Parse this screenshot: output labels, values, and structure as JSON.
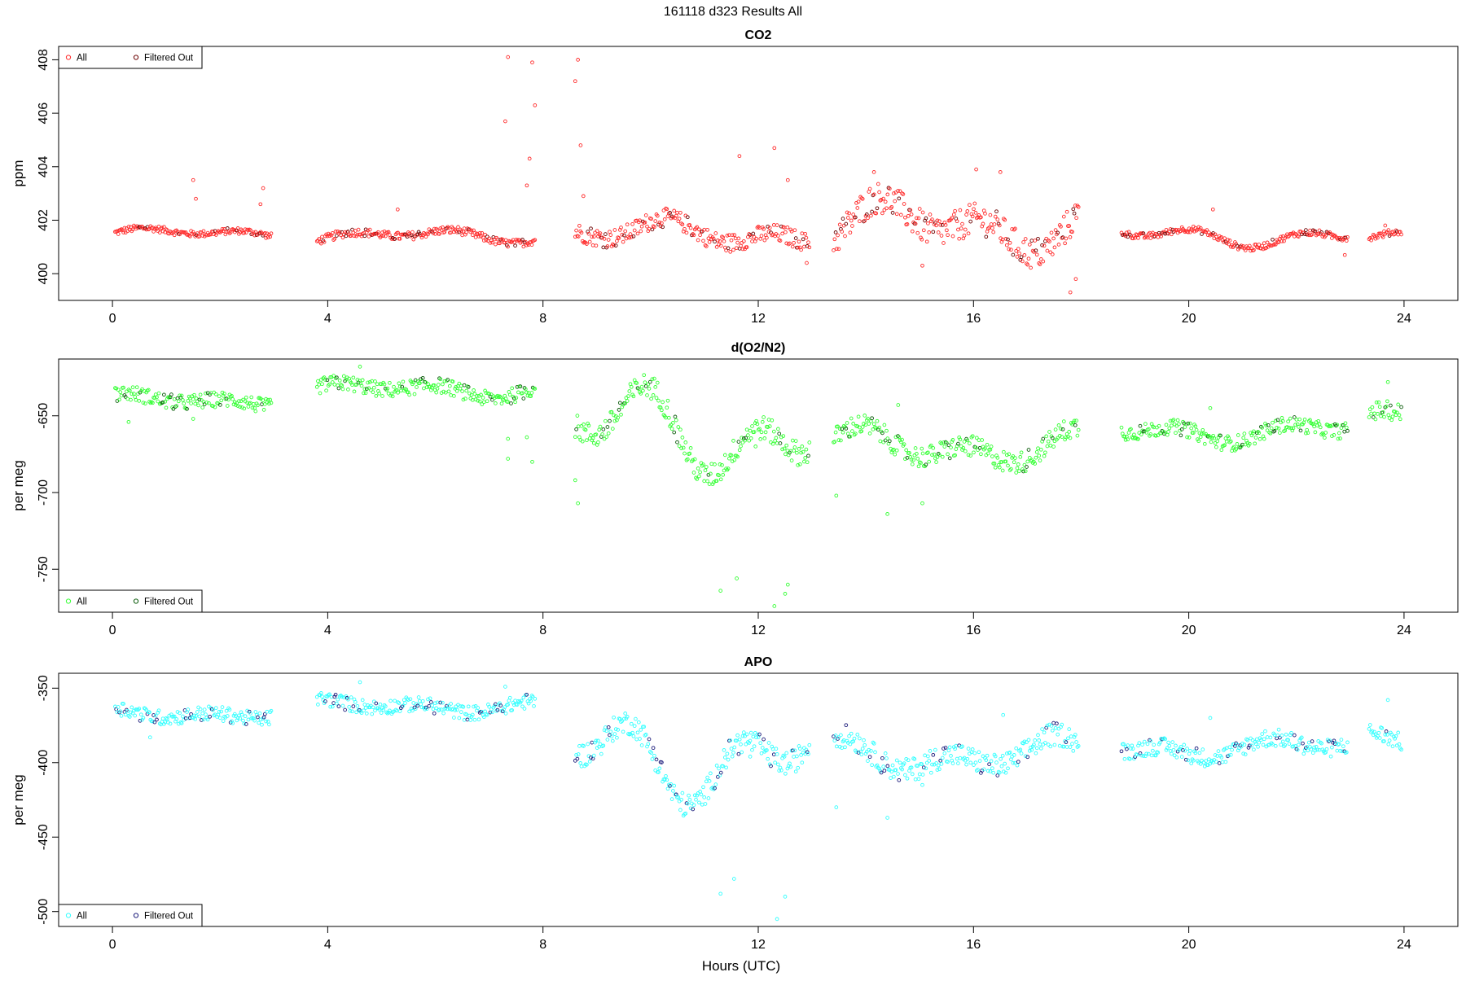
{
  "figure_title": "161118   d323   Results All",
  "xlabel": "Hours (UTC)",
  "chart_data": [
    {
      "type": "scatter",
      "title": "CO2",
      "ylabel": "ppm",
      "xlim": [
        -1,
        25
      ],
      "ylim": [
        399,
        408.5
      ],
      "xticks": [
        0,
        4,
        8,
        12,
        16,
        20,
        24
      ],
      "yticks": [
        400,
        402,
        404,
        406,
        408
      ],
      "legend": {
        "position": "top-left",
        "entries": [
          "All",
          "Filtered Out"
        ]
      },
      "colors": {
        "all": "#ff2a2a",
        "filtered": "#6b0000"
      },
      "segments": [
        {
          "x0": 0.05,
          "x1": 2.95,
          "base": 401.5,
          "amp": 0.25,
          "noise": 0.12,
          "spikes": [
            [
              1.5,
              403.5
            ],
            [
              1.55,
              402.8
            ],
            [
              2.8,
              403.2
            ],
            [
              2.75,
              402.6
            ]
          ]
        },
        {
          "x0": 3.8,
          "x1": 7.85,
          "base": 401.4,
          "amp": 0.3,
          "noise": 0.15,
          "spikes": [
            [
              7.35,
              408.1
            ],
            [
              7.3,
              405.7
            ],
            [
              7.8,
              407.9
            ],
            [
              7.85,
              406.3
            ],
            [
              7.75,
              404.3
            ],
            [
              7.7,
              403.3
            ],
            [
              5.3,
              402.4
            ]
          ]
        },
        {
          "x0": 8.6,
          "x1": 12.95,
          "base": 401.5,
          "amp": 0.6,
          "noise": 0.35,
          "spikes": [
            [
              8.65,
              408.0
            ],
            [
              8.6,
              407.2
            ],
            [
              8.7,
              404.8
            ],
            [
              8.75,
              402.9
            ],
            [
              11.65,
              404.4
            ],
            [
              12.3,
              404.7
            ],
            [
              12.55,
              403.5
            ],
            [
              12.9,
              400.4
            ]
          ]
        },
        {
          "x0": 13.4,
          "x1": 17.95,
          "base": 401.8,
          "amp": 1.1,
          "noise": 0.6,
          "spikes": [
            [
              14.15,
              403.8
            ],
            [
              16.05,
              403.9
            ],
            [
              16.5,
              403.8
            ],
            [
              17.8,
              399.3
            ],
            [
              17.9,
              399.8
            ],
            [
              15.05,
              400.3
            ]
          ]
        },
        {
          "x0": 18.75,
          "x1": 22.95,
          "base": 401.4,
          "amp": 0.45,
          "noise": 0.12,
          "spikes": [
            [
              20.45,
              402.4
            ],
            [
              22.9,
              400.7
            ]
          ]
        },
        {
          "x0": 23.35,
          "x1": 23.95,
          "base": 401.3,
          "amp": 0.3,
          "noise": 0.12,
          "spikes": [
            [
              23.65,
              401.8
            ]
          ]
        }
      ]
    },
    {
      "type": "scatter",
      "title": "d(O2/N2)",
      "ylabel": "per meg",
      "xlim": [
        -1,
        25
      ],
      "ylim": [
        -778,
        -613
      ],
      "xticks": [
        0,
        4,
        8,
        12,
        16,
        20,
        24
      ],
      "yticks": [
        -650,
        -700,
        -750
      ],
      "legend": {
        "position": "bottom-left",
        "entries": [
          "All",
          "Filtered Out"
        ]
      },
      "colors": {
        "all": "#33ff33",
        "filtered": "#0a5a0a"
      },
      "segments": [
        {
          "x0": 0.05,
          "x1": 2.95,
          "base": -640,
          "amp": 5,
          "noise": 5,
          "spikes": [
            [
              1.5,
              -652
            ],
            [
              0.3,
              -654
            ]
          ]
        },
        {
          "x0": 3.8,
          "x1": 7.85,
          "base": -633,
          "amp": 6,
          "noise": 5,
          "spikes": [
            [
              4.6,
              -618
            ],
            [
              7.35,
              -665
            ],
            [
              7.35,
              -678
            ],
            [
              7.8,
              -680
            ],
            [
              7.7,
              -664
            ]
          ]
        },
        {
          "x0": 8.6,
          "x1": 12.95,
          "base": -660,
          "amp": 35,
          "noise": 8,
          "spikes": [
            [
              8.65,
              -707
            ],
            [
              8.6,
              -692
            ],
            [
              11.3,
              -764
            ],
            [
              11.6,
              -756
            ],
            [
              12.3,
              -774
            ],
            [
              12.5,
              -766
            ],
            [
              12.55,
              -760
            ],
            [
              11.95,
              -670
            ]
          ]
        },
        {
          "x0": 13.4,
          "x1": 17.95,
          "base": -670,
          "amp": 14,
          "noise": 7,
          "spikes": [
            [
              13.45,
              -702
            ],
            [
              14.4,
              -714
            ],
            [
              15.05,
              -707
            ],
            [
              14.6,
              -643
            ]
          ]
        },
        {
          "x0": 18.75,
          "x1": 22.95,
          "base": -660,
          "amp": 8,
          "noise": 5,
          "spikes": [
            [
              20.4,
              -645
            ]
          ]
        },
        {
          "x0": 23.35,
          "x1": 23.95,
          "base": -652,
          "amp": 8,
          "noise": 6,
          "spikes": [
            [
              23.7,
              -628
            ]
          ]
        }
      ]
    },
    {
      "type": "scatter",
      "title": "APO",
      "ylabel": "per meg",
      "xlim": [
        -1,
        25
      ],
      "ylim": [
        -510,
        -340
      ],
      "xticks": [
        0,
        4,
        8,
        12,
        16,
        20,
        24
      ],
      "yticks": [
        -350,
        -400,
        -450,
        -500
      ],
      "legend": {
        "position": "bottom-left",
        "entries": [
          "All",
          "Filtered Out"
        ]
      },
      "colors": {
        "all": "#33ffff",
        "filtered": "#1a1a7a"
      },
      "segments": [
        {
          "x0": 0.05,
          "x1": 2.95,
          "base": -367,
          "amp": 5,
          "noise": 5,
          "spikes": [
            [
              0.7,
              -383
            ]
          ]
        },
        {
          "x0": 3.8,
          "x1": 7.85,
          "base": -362,
          "amp": 5,
          "noise": 5,
          "spikes": [
            [
              4.6,
              -346
            ],
            [
              7.3,
              -349
            ]
          ]
        },
        {
          "x0": 8.6,
          "x1": 12.95,
          "base": -395,
          "amp": 35,
          "noise": 8,
          "spikes": [
            [
              11.3,
              -488
            ],
            [
              11.55,
              -478
            ],
            [
              12.35,
              -505
            ],
            [
              12.5,
              -490
            ],
            [
              11.85,
              -396
            ]
          ]
        },
        {
          "x0": 13.4,
          "x1": 17.95,
          "base": -395,
          "amp": 14,
          "noise": 8,
          "spikes": [
            [
              13.45,
              -430
            ],
            [
              14.4,
              -437
            ],
            [
              15.05,
              -415
            ],
            [
              16.55,
              -368
            ]
          ]
        },
        {
          "x0": 18.75,
          "x1": 22.95,
          "base": -390,
          "amp": 8,
          "noise": 6,
          "spikes": [
            [
              20.4,
              -370
            ]
          ]
        },
        {
          "x0": 23.35,
          "x1": 23.95,
          "base": -383,
          "amp": 8,
          "noise": 6,
          "spikes": [
            [
              23.7,
              -358
            ]
          ]
        }
      ]
    }
  ]
}
